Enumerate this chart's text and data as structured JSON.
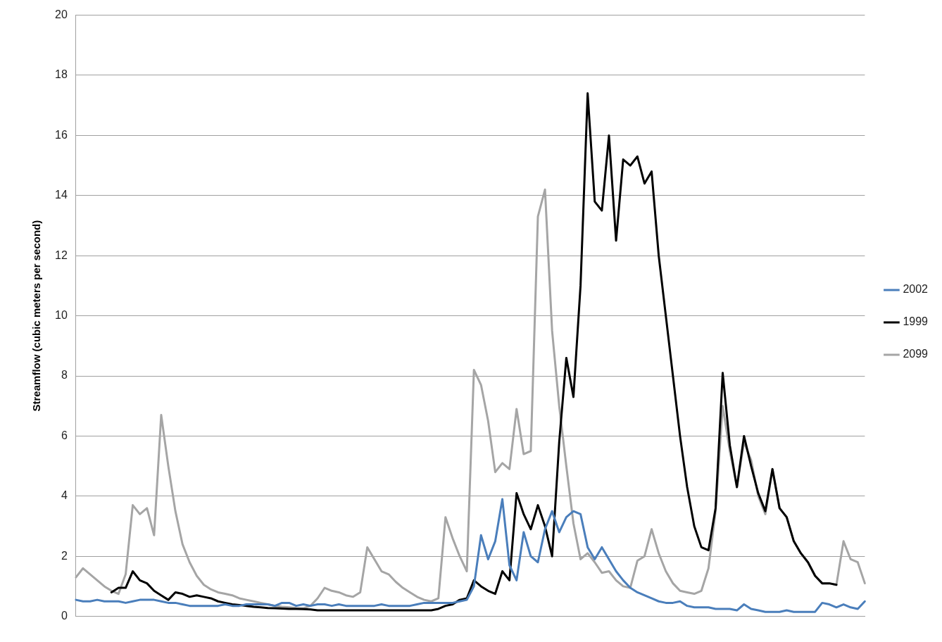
{
  "chart_data": {
    "type": "line",
    "ylabel": "Streamflow (cubic meters per second)",
    "categories": [
      null,
      null,
      null,
      null,
      null,
      null,
      null,
      null,
      null,
      null,
      null,
      null,
      null,
      null,
      null,
      null,
      null,
      null,
      null,
      null,
      null,
      null,
      null,
      null,
      null,
      null,
      null,
      null,
      null,
      null,
      null,
      null,
      null,
      null,
      null,
      null,
      null,
      null,
      null,
      null,
      null,
      null,
      null,
      null,
      null,
      null,
      null,
      null,
      null,
      null,
      null,
      null,
      null,
      null,
      null,
      null,
      null,
      null,
      null,
      null,
      null,
      null,
      null,
      null,
      null,
      null,
      null,
      null,
      null,
      null,
      null,
      null,
      null,
      null,
      null,
      null,
      null,
      null,
      null,
      null,
      null,
      null,
      null,
      null,
      null,
      null,
      null,
      null,
      null,
      null,
      null,
      null,
      null,
      null,
      null,
      null,
      null,
      null,
      null,
      null,
      null,
      null,
      null,
      null,
      null,
      null,
      null,
      null,
      null,
      null,
      null,
      null
    ],
    "series": [
      {
        "name": "2002",
        "color": "#4a7ebb",
        "values": [
          0.55,
          0.5,
          0.5,
          0.55,
          0.5,
          0.5,
          0.5,
          0.45,
          0.5,
          0.55,
          0.55,
          0.55,
          0.5,
          0.45,
          0.45,
          0.4,
          0.35,
          0.35,
          0.35,
          0.35,
          0.35,
          0.4,
          0.35,
          0.35,
          0.4,
          0.4,
          0.4,
          0.4,
          0.35,
          0.45,
          0.45,
          0.35,
          0.4,
          0.35,
          0.4,
          0.4,
          0.35,
          0.4,
          0.35,
          0.35,
          0.35,
          0.35,
          0.35,
          0.4,
          0.35,
          0.35,
          0.35,
          0.35,
          0.4,
          0.45,
          0.45,
          0.45,
          0.45,
          0.45,
          0.5,
          0.55,
          1.0,
          2.7,
          1.9,
          2.5,
          3.9,
          1.7,
          1.2,
          2.8,
          2.0,
          1.8,
          2.9,
          3.5,
          2.8,
          3.3,
          3.5,
          3.4,
          2.3,
          1.9,
          2.3,
          1.9,
          1.5,
          1.2,
          0.95,
          0.8,
          0.7,
          0.6,
          0.5,
          0.45,
          0.45,
          0.5,
          0.35,
          0.3,
          0.3,
          0.3,
          0.25,
          0.25,
          0.25,
          0.2,
          0.4,
          0.25,
          0.2,
          0.15,
          0.15,
          0.15,
          0.2,
          0.15,
          0.15,
          0.15,
          0.15,
          0.45,
          0.4,
          0.3,
          0.4,
          0.3,
          0.25,
          0.5
        ]
      },
      {
        "name": "1999",
        "color": "#000000",
        "values": [
          null,
          null,
          null,
          null,
          null,
          0.8,
          0.95,
          0.95,
          1.5,
          1.2,
          1.1,
          0.85,
          0.7,
          0.55,
          0.8,
          0.75,
          0.65,
          0.7,
          0.65,
          0.6,
          0.5,
          0.45,
          0.4,
          0.38,
          0.35,
          0.32,
          0.3,
          0.28,
          0.27,
          0.26,
          0.25,
          0.25,
          0.24,
          0.23,
          0.2,
          0.2,
          0.2,
          0.2,
          0.2,
          0.2,
          0.2,
          0.2,
          0.2,
          0.2,
          0.2,
          0.2,
          0.2,
          0.2,
          0.2,
          0.2,
          0.2,
          0.25,
          0.35,
          0.4,
          0.55,
          0.6,
          1.2,
          1.0,
          0.85,
          0.75,
          1.5,
          1.2,
          4.1,
          3.4,
          2.9,
          3.7,
          3.0,
          2.0,
          5.8,
          8.6,
          7.3,
          11.0,
          17.4,
          13.8,
          13.5,
          16.0,
          12.5,
          15.2,
          15.0,
          15.3,
          14.4,
          14.8,
          12.0,
          10.0,
          8.0,
          6.0,
          4.3,
          3.0,
          2.3,
          2.2,
          3.6,
          8.1,
          5.7,
          4.3,
          6.0,
          5.0,
          4.1,
          3.5,
          4.9,
          3.6,
          3.3,
          2.5,
          2.1,
          1.8,
          1.35,
          1.1,
          1.1,
          1.05,
          null,
          null,
          null,
          null
        ]
      },
      {
        "name": "2099",
        "color": "#a5a5a5",
        "values": [
          1.3,
          1.6,
          1.4,
          1.2,
          1.0,
          0.85,
          0.75,
          1.4,
          3.7,
          3.4,
          3.6,
          2.7,
          6.7,
          5.0,
          3.5,
          2.4,
          1.8,
          1.35,
          1.05,
          0.9,
          0.8,
          0.75,
          0.7,
          0.6,
          0.55,
          0.5,
          0.45,
          0.4,
          0.35,
          0.32,
          0.3,
          0.28,
          0.27,
          0.35,
          0.6,
          0.95,
          0.85,
          0.8,
          0.7,
          0.65,
          0.8,
          2.3,
          1.9,
          1.5,
          1.4,
          1.15,
          0.95,
          0.8,
          0.65,
          0.55,
          0.5,
          0.6,
          3.3,
          2.6,
          2.0,
          1.5,
          8.2,
          7.7,
          6.5,
          4.8,
          5.1,
          4.9,
          6.9,
          5.4,
          5.5,
          13.3,
          14.2,
          9.5,
          7.0,
          5.0,
          3.1,
          1.9,
          2.1,
          1.8,
          1.45,
          1.5,
          1.2,
          1.0,
          0.95,
          1.85,
          2.0,
          2.9,
          2.1,
          1.5,
          1.1,
          0.85,
          0.8,
          0.75,
          0.85,
          1.6,
          3.5,
          7.0,
          5.5,
          4.3,
          5.8,
          5.2,
          4.0,
          3.4,
          4.9,
          3.6,
          3.3,
          2.5,
          2.1,
          1.8,
          1.35,
          1.1,
          1.1,
          1.05,
          2.5,
          1.9,
          1.8,
          1.1
        ]
      }
    ],
    "ylim": [
      0,
      20
    ],
    "yticks": [
      0,
      2,
      4,
      6,
      8,
      10,
      12,
      14,
      16,
      18,
      20
    ],
    "grid": "y",
    "legend": "right",
    "marker": "none",
    "line_style": "solid"
  }
}
